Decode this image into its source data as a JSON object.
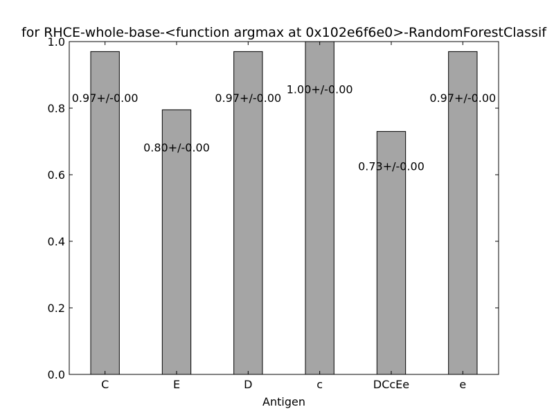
{
  "chart_data": {
    "type": "bar",
    "title": "for RHCE-whole-base-<function argmax at 0x102e6f6e0>-RandomForestClassif",
    "xlabel": "Antigen",
    "ylabel": "",
    "categories": [
      "C",
      "E",
      "D",
      "c",
      "DCcEe",
      "e"
    ],
    "values": [
      0.97,
      0.795,
      0.97,
      1.0,
      0.73,
      0.97
    ],
    "data_labels": [
      "0.97+/-0.00",
      "0.80+/-0.00",
      "0.97+/-0.00",
      "1.00+/-0.00",
      "0.73+/-0.00",
      "0.97+/-0.00"
    ],
    "ylim": [
      0.0,
      1.0
    ],
    "yticks": [
      "0.0",
      "0.2",
      "0.4",
      "0.6",
      "0.8",
      "1.0"
    ],
    "grid": false,
    "bar_color": "#a5a5a5",
    "edge_color": "#000000"
  }
}
